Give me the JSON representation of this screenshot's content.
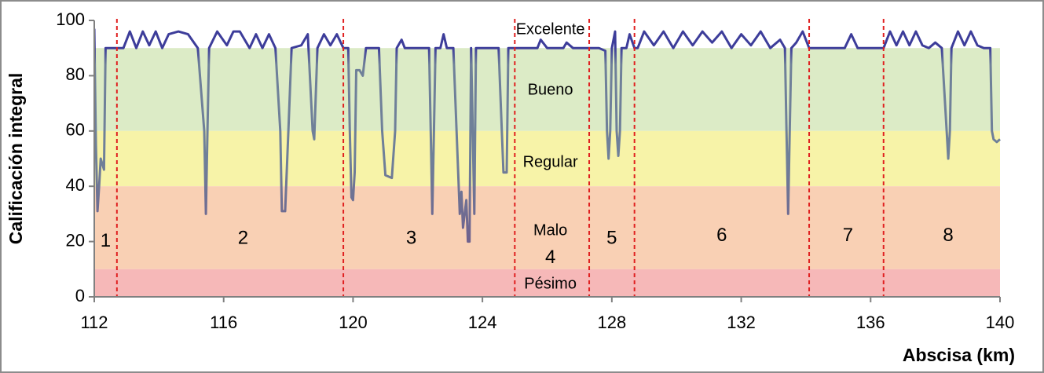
{
  "chart_data": {
    "type": "line",
    "title": "",
    "xlabel": "Abscisa (km)",
    "ylabel": "Calificación integral",
    "xlim": [
      112,
      140
    ],
    "ylim": [
      0,
      100
    ],
    "xticks": [
      112,
      116,
      120,
      124,
      128,
      132,
      136,
      140
    ],
    "yticks": [
      0,
      20,
      40,
      60,
      80,
      100
    ],
    "grid": false,
    "legend": "none",
    "bands": [
      {
        "label": "Excelente",
        "from": 90,
        "to": 100,
        "color": "#ffffff"
      },
      {
        "label": "Bueno",
        "from": 60,
        "to": 90,
        "color": "#dcebc6"
      },
      {
        "label": "Regular",
        "from": 40,
        "to": 60,
        "color": "#f7f3a8"
      },
      {
        "label": "Malo",
        "from": 10,
        "to": 40,
        "color": "#f9d0b4"
      },
      {
        "label": "Pésimo",
        "from": 0,
        "to": 10,
        "color": "#f6b8b8"
      }
    ],
    "section_dividers": [
      112.7,
      119.7,
      125.0,
      127.3,
      128.7,
      134.1,
      136.4
    ],
    "sections": [
      {
        "label": "1",
        "x": 112.35,
        "y": 20
      },
      {
        "label": "2",
        "x": 116.6,
        "y": 21
      },
      {
        "label": "3",
        "x": 121.8,
        "y": 21
      },
      {
        "label": "4",
        "x": 126.1,
        "y": 14
      },
      {
        "label": "5",
        "x": 128.0,
        "y": 21
      },
      {
        "label": "6",
        "x": 131.4,
        "y": 22
      },
      {
        "label": "7",
        "x": 135.3,
        "y": 22
      },
      {
        "label": "8",
        "x": 138.4,
        "y": 22
      }
    ],
    "colors": {
      "line_high": "#3d3d9a",
      "line_mid": "#6f8099",
      "line_low": "#6f4d86",
      "divider": "#e02020",
      "axis": "#808080"
    },
    "series": [
      {
        "values": [
          [
            112.0,
            97
          ],
          [
            112.05,
            55
          ],
          [
            112.1,
            31
          ],
          [
            112.15,
            40
          ],
          [
            112.2,
            50
          ],
          [
            112.25,
            48
          ],
          [
            112.3,
            46
          ],
          [
            112.35,
            90
          ],
          [
            112.5,
            90
          ],
          [
            112.7,
            90
          ],
          [
            112.9,
            90
          ],
          [
            113.1,
            96
          ],
          [
            113.3,
            90
          ],
          [
            113.5,
            96
          ],
          [
            113.7,
            91
          ],
          [
            113.9,
            96
          ],
          [
            114.1,
            90
          ],
          [
            114.3,
            95
          ],
          [
            114.6,
            96
          ],
          [
            114.9,
            95
          ],
          [
            115.2,
            90
          ],
          [
            115.4,
            60
          ],
          [
            115.45,
            30
          ],
          [
            115.5,
            60
          ],
          [
            115.55,
            90
          ],
          [
            115.8,
            96
          ],
          [
            116.1,
            91
          ],
          [
            116.3,
            96
          ],
          [
            116.5,
            96
          ],
          [
            116.8,
            90
          ],
          [
            117.0,
            95
          ],
          [
            117.2,
            90
          ],
          [
            117.4,
            95
          ],
          [
            117.6,
            90
          ],
          [
            117.75,
            60
          ],
          [
            117.8,
            31
          ],
          [
            117.9,
            31
          ],
          [
            118.0,
            60
          ],
          [
            118.1,
            90
          ],
          [
            118.4,
            91
          ],
          [
            118.6,
            95
          ],
          [
            118.75,
            60
          ],
          [
            118.8,
            57
          ],
          [
            118.9,
            90
          ],
          [
            119.1,
            95
          ],
          [
            119.3,
            91
          ],
          [
            119.5,
            95
          ],
          [
            119.7,
            90
          ],
          [
            119.85,
            90
          ],
          [
            119.9,
            60
          ],
          [
            119.95,
            36
          ],
          [
            120.0,
            35
          ],
          [
            120.05,
            45
          ],
          [
            120.1,
            82
          ],
          [
            120.2,
            82
          ],
          [
            120.3,
            80
          ],
          [
            120.4,
            90
          ],
          [
            120.6,
            90
          ],
          [
            120.8,
            90
          ],
          [
            120.9,
            60
          ],
          [
            121.0,
            44
          ],
          [
            121.2,
            43
          ],
          [
            121.3,
            60
          ],
          [
            121.35,
            90
          ],
          [
            121.5,
            93
          ],
          [
            121.6,
            90
          ],
          [
            121.8,
            90
          ],
          [
            122.0,
            90
          ],
          [
            122.2,
            90
          ],
          [
            122.35,
            90
          ],
          [
            122.4,
            60
          ],
          [
            122.45,
            30
          ],
          [
            122.5,
            60
          ],
          [
            122.55,
            90
          ],
          [
            122.7,
            90
          ],
          [
            122.8,
            95
          ],
          [
            122.9,
            90
          ],
          [
            123.0,
            90
          ],
          [
            123.1,
            90
          ],
          [
            123.2,
            60
          ],
          [
            123.3,
            30
          ],
          [
            123.35,
            38
          ],
          [
            123.4,
            25
          ],
          [
            123.5,
            35
          ],
          [
            123.55,
            20
          ],
          [
            123.6,
            20
          ],
          [
            123.65,
            90
          ],
          [
            123.7,
            60
          ],
          [
            123.75,
            30
          ],
          [
            123.8,
            90
          ],
          [
            123.9,
            90
          ],
          [
            124.0,
            90
          ],
          [
            124.1,
            90
          ],
          [
            124.3,
            90
          ],
          [
            124.5,
            90
          ],
          [
            124.6,
            60
          ],
          [
            124.65,
            45
          ],
          [
            124.75,
            45
          ],
          [
            124.8,
            90
          ],
          [
            125.0,
            90
          ],
          [
            125.3,
            90
          ],
          [
            125.5,
            90
          ],
          [
            125.7,
            90
          ],
          [
            125.8,
            93
          ],
          [
            126.0,
            90
          ],
          [
            126.3,
            90
          ],
          [
            126.5,
            90
          ],
          [
            126.6,
            92
          ],
          [
            126.8,
            90
          ],
          [
            127.0,
            90
          ],
          [
            127.2,
            90
          ],
          [
            127.4,
            90
          ],
          [
            127.6,
            90
          ],
          [
            127.8,
            89
          ],
          [
            127.85,
            60
          ],
          [
            127.9,
            50
          ],
          [
            127.95,
            60
          ],
          [
            128.0,
            90
          ],
          [
            128.1,
            96
          ],
          [
            128.15,
            60
          ],
          [
            128.2,
            51
          ],
          [
            128.25,
            60
          ],
          [
            128.3,
            90
          ],
          [
            128.45,
            90
          ],
          [
            128.55,
            95
          ],
          [
            128.7,
            90
          ],
          [
            128.8,
            90
          ],
          [
            129.0,
            96
          ],
          [
            129.3,
            91
          ],
          [
            129.6,
            96
          ],
          [
            129.9,
            90
          ],
          [
            130.2,
            96
          ],
          [
            130.5,
            91
          ],
          [
            130.8,
            96
          ],
          [
            131.1,
            92
          ],
          [
            131.4,
            96
          ],
          [
            131.7,
            90
          ],
          [
            132.0,
            95
          ],
          [
            132.3,
            91
          ],
          [
            132.6,
            96
          ],
          [
            132.9,
            90
          ],
          [
            133.2,
            93
          ],
          [
            133.35,
            90
          ],
          [
            133.4,
            60
          ],
          [
            133.45,
            30
          ],
          [
            133.5,
            60
          ],
          [
            133.55,
            90
          ],
          [
            133.7,
            92
          ],
          [
            133.9,
            96
          ],
          [
            134.1,
            90
          ],
          [
            134.5,
            90
          ],
          [
            134.9,
            90
          ],
          [
            135.2,
            90
          ],
          [
            135.4,
            95
          ],
          [
            135.6,
            90
          ],
          [
            136.0,
            90
          ],
          [
            136.4,
            90
          ],
          [
            136.6,
            96
          ],
          [
            136.8,
            91
          ],
          [
            137.0,
            96
          ],
          [
            137.2,
            91
          ],
          [
            137.4,
            96
          ],
          [
            137.6,
            91
          ],
          [
            137.8,
            90
          ],
          [
            138.0,
            92
          ],
          [
            138.2,
            90
          ],
          [
            138.35,
            60
          ],
          [
            138.4,
            50
          ],
          [
            138.45,
            60
          ],
          [
            138.5,
            90
          ],
          [
            138.7,
            96
          ],
          [
            138.9,
            91
          ],
          [
            139.1,
            96
          ],
          [
            139.3,
            91
          ],
          [
            139.5,
            90
          ],
          [
            139.7,
            90
          ],
          [
            139.75,
            60
          ],
          [
            139.8,
            57
          ],
          [
            139.9,
            56
          ],
          [
            140.0,
            57
          ]
        ]
      }
    ]
  }
}
